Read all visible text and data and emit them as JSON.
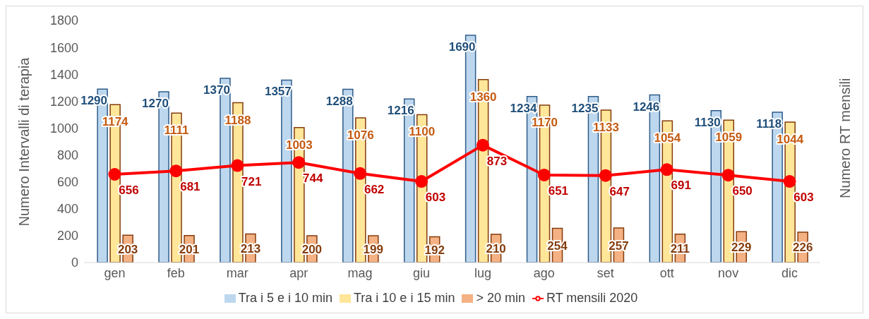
{
  "chart_data": {
    "type": "bar",
    "ylabel": "Numero Intervalli di terapia",
    "y2label": "Numero RT mensili",
    "categories": [
      "gen",
      "feb",
      "mar",
      "apr",
      "mag",
      "giu",
      "lug",
      "ago",
      "set",
      "ott",
      "nov",
      "dic"
    ],
    "series": [
      {
        "name": "Tra i 5 e i 10 min",
        "color": "#bdd7ee",
        "values": [
          1290,
          1270,
          1370,
          1357,
          1288,
          1216,
          1690,
          1234,
          1235,
          1246,
          1130,
          1118
        ]
      },
      {
        "name": "Tra i 10 e i 15 min",
        "color": "#ffe699",
        "values": [
          1174,
          1111,
          1188,
          1003,
          1076,
          1100,
          1360,
          1170,
          1133,
          1054,
          1059,
          1044
        ]
      },
      {
        "name": "> 20 min",
        "color": "#f4b183",
        "values": [
          203,
          201,
          213,
          200,
          199,
          192,
          210,
          254,
          257,
          211,
          229,
          226
        ]
      },
      {
        "name": "RT mensili 2020",
        "type": "line",
        "color": "#ff0000",
        "marker": "circle",
        "values": [
          656,
          681,
          721,
          744,
          662,
          603,
          873,
          651,
          647,
          691,
          650,
          603
        ]
      }
    ],
    "ylim": [
      0,
      1800
    ],
    "yticks": [
      0,
      200,
      400,
      600,
      800,
      1000,
      1200,
      1400,
      1600,
      1800
    ],
    "data_labels": true,
    "legend": "bottom",
    "grid": false
  }
}
